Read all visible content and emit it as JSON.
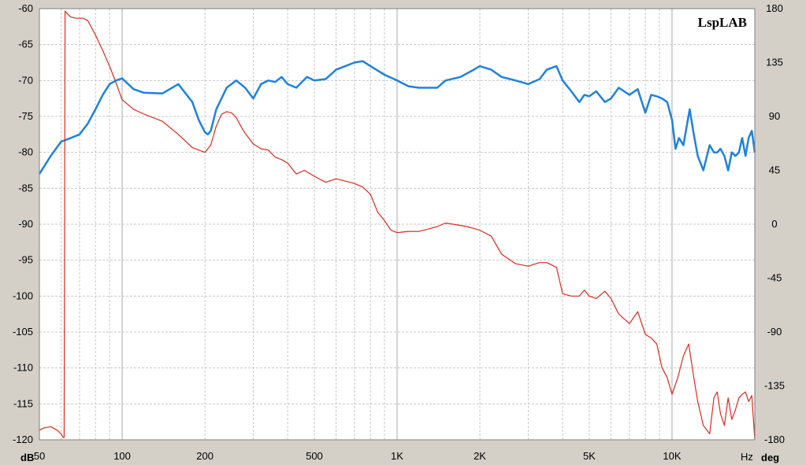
{
  "brand": "LspLAB",
  "colors": {
    "background": "#d4d0c8",
    "plot": "#ffffff",
    "grid": "#c8c8c8",
    "magnitude": "#1e82dc",
    "phase": "#dc2a1e",
    "left_unit": "#1e82dc",
    "right_unit": "#dc2a1e"
  },
  "chart_data": {
    "type": "line",
    "x_scale": "log",
    "xlim": [
      50,
      20000
    ],
    "ylim_left": [
      -120,
      -60
    ],
    "ylim_right": [
      -180,
      180
    ],
    "ylabel_left": "dB",
    "ylabel_right": "deg",
    "xlabel": "Hz",
    "grid": true,
    "x_ticks": [
      50,
      100,
      200,
      500,
      1000,
      2000,
      5000,
      10000
    ],
    "x_tick_labels": [
      "50",
      "100",
      "200",
      "500",
      "1K",
      "2K",
      "5K",
      "10K"
    ],
    "left_ticks": [
      -60,
      -65,
      -70,
      -75,
      -80,
      -85,
      -90,
      -95,
      -100,
      -105,
      -110,
      -115,
      -120
    ],
    "left_tick_labels": [
      "-60",
      "-65",
      "-70",
      "-75",
      "-80",
      "-85",
      "-90",
      "-95",
      "-100",
      "-105",
      "-110",
      "-115",
      "-120"
    ],
    "right_ticks": [
      180,
      135,
      90,
      45,
      0,
      -45,
      -90,
      -135,
      -180
    ],
    "right_tick_labels": [
      "180",
      "135",
      "90",
      "45",
      "0",
      "-45",
      "-90",
      "-135",
      "-180"
    ],
    "series": [
      {
        "axis": "left",
        "color": "#1e82dc",
        "x": [
          50,
          55,
          60,
          65,
          70,
          75,
          80,
          85,
          90,
          95,
          100,
          110,
          120,
          140,
          160,
          180,
          190,
          200,
          205,
          210,
          220,
          240,
          260,
          280,
          300,
          320,
          340,
          360,
          380,
          400,
          430,
          470,
          500,
          550,
          600,
          700,
          750,
          800,
          900,
          1000,
          1100,
          1200,
          1300,
          1400,
          1500,
          1700,
          1900,
          2000,
          2200,
          2400,
          2700,
          3000,
          3300,
          3500,
          3800,
          4000,
          4300,
          4600,
          4800,
          5000,
          5300,
          5700,
          6000,
          6400,
          7000,
          7500,
          8000,
          8400,
          8800,
          9200,
          9600,
          10000,
          10300,
          10600,
          11000,
          11600,
          12000,
          12400,
          13000,
          13700,
          14200,
          14600,
          15000,
          15500,
          16000,
          16500,
          17000,
          17500,
          18000,
          18500,
          19000,
          19500,
          20000
        ],
        "y": [
          -83,
          -80.5,
          -78.5,
          -78,
          -77.5,
          -76,
          -74,
          -72,
          -70.5,
          -70,
          -69.7,
          -71.2,
          -71.7,
          -71.8,
          -70.5,
          -73,
          -75.5,
          -77.2,
          -77.5,
          -77,
          -74,
          -71,
          -70,
          -71,
          -72.5,
          -70.5,
          -70,
          -70.2,
          -69.5,
          -70.5,
          -71,
          -69.5,
          -70,
          -69.8,
          -68.5,
          -67.5,
          -67.3,
          -68,
          -69.2,
          -70,
          -70.8,
          -71,
          -71,
          -71,
          -70,
          -69.5,
          -68.5,
          -68,
          -68.5,
          -69.5,
          -70,
          -70.5,
          -69.8,
          -68.5,
          -68,
          -70,
          -71.5,
          -73,
          -72,
          -72.2,
          -71.5,
          -73,
          -72.5,
          -71,
          -72,
          -71.2,
          -74.5,
          -72,
          -72.2,
          -72.5,
          -73,
          -75.5,
          -79.5,
          -78,
          -79,
          -74,
          -77.5,
          -80.5,
          -82.5,
          -79,
          -80,
          -80,
          -79.5,
          -80.5,
          -82.5,
          -80,
          -80.5,
          -80,
          -78,
          -80.5,
          -78,
          -77,
          -80
        ]
      },
      {
        "axis": "right",
        "color": "#dc2a1e",
        "x": [
          50,
          52,
          55,
          58,
          60,
          61,
          61.5,
          62,
          63,
          65,
          68,
          72,
          75,
          80,
          85,
          90,
          95,
          100,
          110,
          120,
          140,
          160,
          180,
          200,
          210,
          220,
          230,
          240,
          250,
          260,
          270,
          280,
          300,
          320,
          340,
          360,
          380,
          400,
          430,
          460,
          500,
          550,
          600,
          700,
          750,
          800,
          850,
          900,
          950,
          1000,
          1100,
          1200,
          1300,
          1400,
          1500,
          1600,
          1800,
          2000,
          2200,
          2400,
          2700,
          3000,
          3300,
          3500,
          3800,
          4000,
          4300,
          4600,
          4800,
          5000,
          5300,
          5700,
          6000,
          6400,
          7000,
          7500,
          8000,
          8400,
          8800,
          9200,
          9600,
          10000,
          10500,
          11000,
          11500,
          12000,
          12400,
          13000,
          13700,
          14200,
          14600,
          15000,
          15500,
          16000,
          16500,
          17000,
          17500,
          18000,
          18500,
          19000,
          19500,
          20000
        ],
        "y": [
          -172,
          -170,
          -169,
          -172,
          -175,
          -178,
          -178,
          178,
          176,
          173,
          172,
          172,
          170,
          158,
          145,
          132,
          118,
          104,
          96,
          92,
          86,
          75,
          64,
          60,
          66,
          82,
          92,
          94,
          93,
          89,
          82,
          76,
          67,
          63,
          62,
          56,
          54,
          51,
          42,
          45,
          40,
          35,
          38,
          34,
          31,
          25,
          10,
          3,
          -5,
          -7,
          -6,
          -6,
          -4,
          -2,
          1,
          0,
          -2,
          -5,
          -10,
          -25,
          -33,
          -35,
          -32,
          -32,
          -36,
          -58,
          -60,
          -60,
          -55,
          -60,
          -62,
          -56,
          -62,
          -75,
          -83,
          -73,
          -92,
          -95,
          -100,
          -120,
          -128,
          -142,
          -128,
          -110,
          -100,
          -128,
          -148,
          -168,
          -175,
          -145,
          -140,
          -158,
          -168,
          -145,
          -163,
          -155,
          -145,
          -142,
          -140,
          -148,
          -143,
          -180
        ]
      }
    ]
  }
}
